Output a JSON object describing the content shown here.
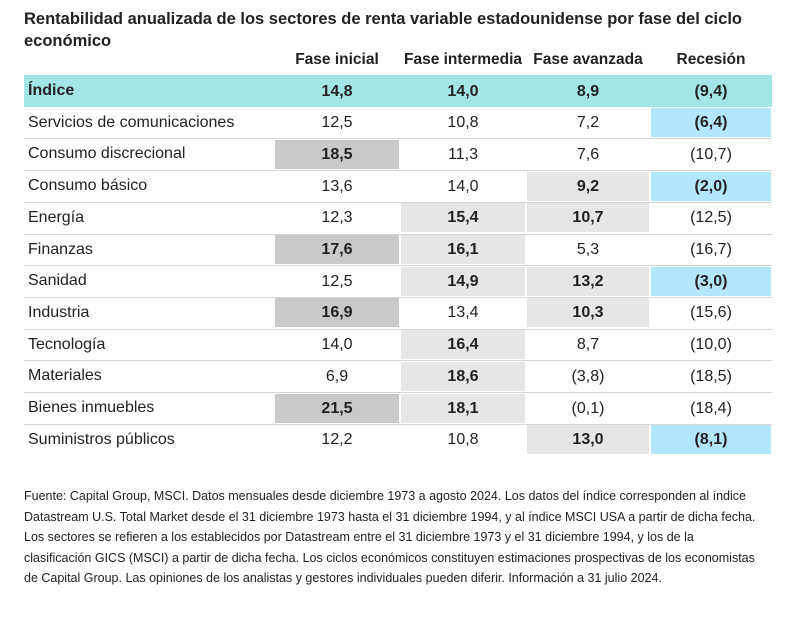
{
  "title": "Rentabilidad anualizada de los sectores de renta variable estadounidense por fase del ciclo económico",
  "footnote": "Fuente: Capital Group, MSCI. Datos mensuales desde diciembre 1973 a agosto 2024. Los datos del índice corresponden al índice Datastream U.S. Total Market desde el 31 diciembre 1973 hasta el 31 diciembre 1994, y al índice MSCI USA a partir de dicha fecha. Los sectores se refieren a los establecidos por Datastream entre el 31 diciembre 1973 y el 31 diciembre 1994, y los de la clasificación GICS (MSCI) a partir de dicha fecha. Los ciclos económicos constituyen estimaciones prospectivas de los economistas de Capital Group. Las opiniones de los analistas y gestores individuales pueden diferir. Información a 31 julio 2024.",
  "colors": {
    "index_row": "#a3e6e6",
    "dark_gray": "#c9c9c9",
    "light_gray": "#e6e6e6",
    "light_blue": "#b3e6ff"
  },
  "chart_data": {
    "type": "table",
    "title": "Rentabilidad anualizada de los sectores de renta variable estadounidense por fase del ciclo económico",
    "columns": [
      "Fase inicial",
      "Fase intermedia",
      "Fase avanzada",
      "Recesión"
    ],
    "rows": [
      {
        "label": "Índice",
        "values": [
          "14,8",
          "14,0",
          "8,9",
          "(9,4)"
        ],
        "bold": [
          true,
          true,
          true,
          true
        ],
        "highlight": [
          "",
          "",
          "",
          ""
        ]
      },
      {
        "label": "Servicios de comunicaciones",
        "values": [
          "12,5",
          "10,8",
          "7,2",
          "(6,4)"
        ],
        "bold": [
          false,
          false,
          false,
          true
        ],
        "highlight": [
          "",
          "",
          "",
          "blue"
        ]
      },
      {
        "label": "Consumo discrecional",
        "values": [
          "18,5",
          "11,3",
          "7,6",
          "(10,7)"
        ],
        "bold": [
          true,
          false,
          false,
          false
        ],
        "highlight": [
          "dark",
          "",
          "",
          ""
        ]
      },
      {
        "label": "Consumo básico",
        "values": [
          "13,6",
          "14,0",
          "9,2",
          "(2,0)"
        ],
        "bold": [
          false,
          false,
          true,
          true
        ],
        "highlight": [
          "",
          "",
          "light",
          "blue"
        ]
      },
      {
        "label": "Energía",
        "values": [
          "12,3",
          "15,4",
          "10,7",
          "(12,5)"
        ],
        "bold": [
          false,
          true,
          true,
          false
        ],
        "highlight": [
          "",
          "light",
          "light",
          ""
        ]
      },
      {
        "label": "Finanzas",
        "values": [
          "17,6",
          "16,1",
          "5,3",
          "(16,7)"
        ],
        "bold": [
          true,
          true,
          false,
          false
        ],
        "highlight": [
          "dark",
          "light",
          "",
          ""
        ]
      },
      {
        "label": "Sanidad",
        "values": [
          "12,5",
          "14,9",
          "13,2",
          "(3,0)"
        ],
        "bold": [
          false,
          true,
          true,
          true
        ],
        "highlight": [
          "",
          "light",
          "light",
          "blue"
        ]
      },
      {
        "label": "Industria",
        "values": [
          "16,9",
          "13,4",
          "10,3",
          "(15,6)"
        ],
        "bold": [
          true,
          false,
          true,
          false
        ],
        "highlight": [
          "dark",
          "",
          "light",
          ""
        ]
      },
      {
        "label": "Tecnología",
        "values": [
          "14,0",
          "16,4",
          "8,7",
          "(10,0)"
        ],
        "bold": [
          false,
          true,
          false,
          false
        ],
        "highlight": [
          "",
          "light",
          "",
          ""
        ]
      },
      {
        "label": "Materiales",
        "values": [
          "6,9",
          "18,6",
          "(3,8)",
          "(18,5)"
        ],
        "bold": [
          false,
          true,
          false,
          false
        ],
        "highlight": [
          "",
          "light",
          "",
          ""
        ]
      },
      {
        "label": "Bienes inmuebles",
        "values": [
          "21,5",
          "18,1",
          "(0,1)",
          "(18,4)"
        ],
        "bold": [
          true,
          true,
          false,
          false
        ],
        "highlight": [
          "dark",
          "light",
          "",
          ""
        ]
      },
      {
        "label": "Suministros públicos",
        "values": [
          "12,2",
          "10,8",
          "13,0",
          "(8,1)"
        ],
        "bold": [
          false,
          false,
          true,
          true
        ],
        "highlight": [
          "",
          "",
          "light",
          "blue"
        ]
      }
    ]
  }
}
